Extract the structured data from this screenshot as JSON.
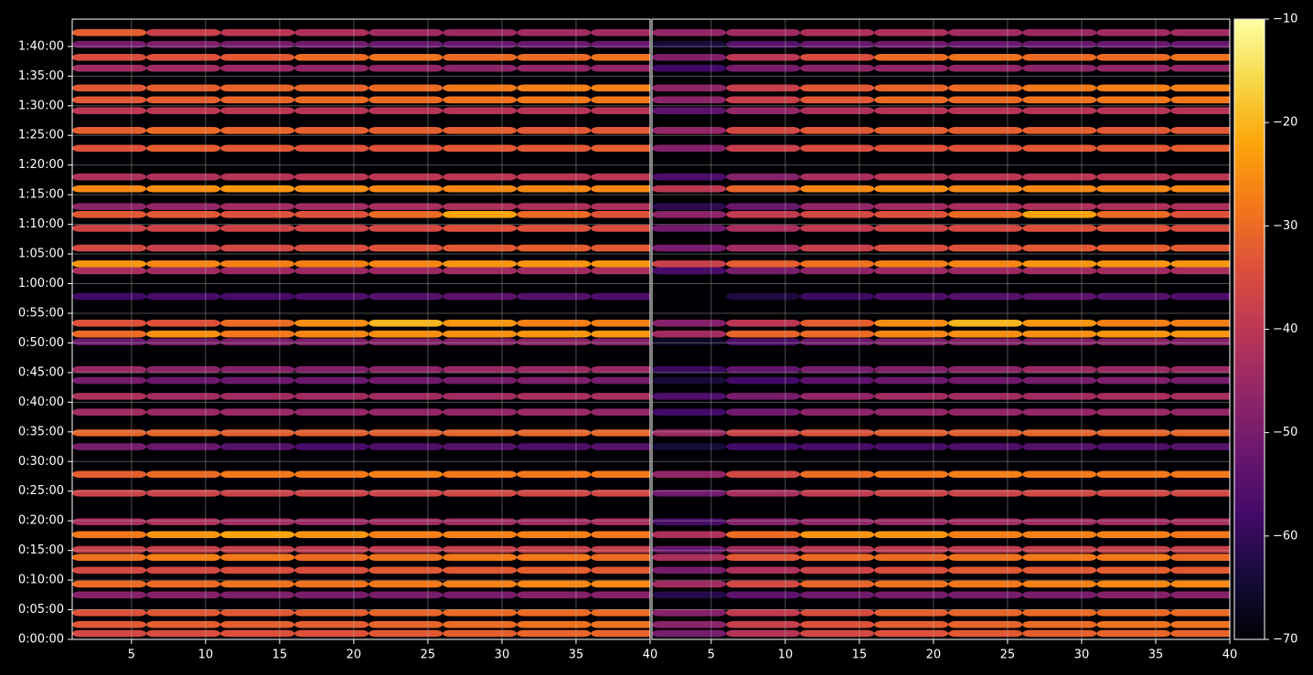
{
  "chart_data": [
    {
      "type": "heatmap",
      "colormap": "inferno",
      "zlim": [
        -70,
        -10
      ],
      "grid": true,
      "xlim": [
        1,
        40
      ],
      "xticks": [
        5,
        10,
        15,
        20,
        25,
        30,
        35,
        40
      ],
      "ylim": [
        0,
        6276
      ],
      "yticks": [
        {
          "value": 0,
          "label": "0:00:00"
        },
        {
          "value": 300,
          "label": "0:05:00"
        },
        {
          "value": 600,
          "label": "0:10:00"
        },
        {
          "value": 900,
          "label": "0:15:00"
        },
        {
          "value": 1200,
          "label": "0:20:00"
        },
        {
          "value": 1500,
          "label": "0:25:00"
        },
        {
          "value": 1800,
          "label": "0:30:00"
        },
        {
          "value": 2100,
          "label": "0:35:00"
        },
        {
          "value": 2400,
          "label": "0:40:00"
        },
        {
          "value": 2700,
          "label": "0:45:00"
        },
        {
          "value": 3000,
          "label": "0:50:00"
        },
        {
          "value": 3300,
          "label": "0:55:00"
        },
        {
          "value": 3600,
          "label": "1:00:00"
        },
        {
          "value": 3900,
          "label": "1:05:00"
        },
        {
          "value": 4200,
          "label": "1:10:00"
        },
        {
          "value": 4500,
          "label": "1:15:00"
        },
        {
          "value": 4800,
          "label": "1:20:00"
        },
        {
          "value": 5100,
          "label": "1:25:00"
        },
        {
          "value": 5400,
          "label": "1:30:00"
        },
        {
          "value": 5700,
          "label": "1:35:00"
        },
        {
          "value": 6000,
          "label": "1:40:00"
        }
      ],
      "x": [
        3.5,
        8.5,
        13.5,
        18.5,
        23.5,
        28.5,
        33.5,
        38.5
      ],
      "y": [
        60,
        150,
        270,
        450,
        560,
        700,
        830,
        910,
        1060,
        1190,
        1480,
        1670,
        1950,
        2090,
        2300,
        2460,
        2620,
        2730,
        3010,
        3090,
        3200,
        3470,
        3730,
        3800,
        3960,
        4160,
        4300,
        4380,
        4560,
        4680,
        4970,
        5150,
        5350,
        5460,
        5580,
        5780,
        5890,
        6020,
        6140
      ],
      "z": [
        [
          -36,
          -35,
          -34,
          -34,
          -33,
          -32,
          -31,
          -31
        ],
        [
          -33,
          -32,
          -32,
          -32,
          -31,
          -30,
          -29,
          -29
        ],
        [
          -34,
          -33,
          -33,
          -32,
          -31,
          -30,
          -30,
          -30
        ],
        [
          -48,
          -48,
          -49,
          -50,
          -50,
          -50,
          -48,
          -48
        ],
        [
          -30,
          -30,
          -29,
          -29,
          -28,
          -27,
          -26,
          -26
        ],
        [
          -36,
          -36,
          -35,
          -35,
          -33,
          -33,
          -32,
          -33
        ],
        [
          -29,
          -27,
          -28,
          -30,
          -29,
          -28,
          -28,
          -30
        ],
        [
          -38,
          -38,
          -38,
          -39,
          -39,
          -38,
          -38,
          -38
        ],
        [
          -28,
          -24,
          -22,
          -24,
          -27,
          -27,
          -27,
          -28
        ],
        [
          -43,
          -42,
          -44,
          -45,
          -44,
          -44,
          -44,
          -43
        ],
        [
          -37,
          -37,
          -37,
          -37,
          -37,
          -36,
          -36,
          -36
        ],
        [
          -32,
          -30,
          -28,
          -28,
          -27,
          -28,
          -28,
          -28
        ],
        [
          -50,
          -52,
          -55,
          -57,
          -56,
          -55,
          -56,
          -55
        ],
        [
          -31,
          -31,
          -32,
          -32,
          -32,
          -31,
          -31,
          -31
        ],
        [
          -44,
          -45,
          -45,
          -46,
          -46,
          -46,
          -45,
          -46
        ],
        [
          -42,
          -44,
          -44,
          -44,
          -44,
          -44,
          -43,
          -43
        ],
        [
          -50,
          -52,
          -52,
          -52,
          -51,
          -50,
          -49,
          -50
        ],
        [
          -45,
          -47,
          -48,
          -49,
          -47,
          -45,
          -45,
          -45
        ],
        [
          -52,
          -50,
          -49,
          -49,
          -48,
          -48,
          -47,
          -48
        ],
        [
          -30,
          -25,
          -28,
          -26,
          -25,
          -25,
          -24,
          -24
        ],
        [
          -34,
          -34,
          -30,
          -25,
          -20,
          -24,
          -27,
          -27
        ],
        [
          -58,
          -57,
          -57,
          -56,
          -55,
          -54,
          -55,
          -56
        ],
        [
          -43,
          -44,
          -45,
          -45,
          -45,
          -44,
          -44,
          -43
        ],
        [
          -24,
          -26,
          -27,
          -27,
          -26,
          -24,
          -24,
          -24
        ],
        [
          -36,
          -38,
          -36,
          -35,
          -34,
          -33,
          -32,
          -33
        ],
        [
          -37,
          -37,
          -37,
          -37,
          -36,
          -34,
          -34,
          -35
        ],
        [
          -33,
          -33,
          -34,
          -34,
          -30,
          -22,
          -30,
          -34
        ],
        [
          -47,
          -46,
          -44,
          -44,
          -43,
          -42,
          -42,
          -42
        ],
        [
          -26,
          -25,
          -24,
          -25,
          -26,
          -26,
          -26,
          -26
        ],
        [
          -42,
          -42,
          -41,
          -40,
          -40,
          -40,
          -40,
          -40
        ],
        [
          -34,
          -32,
          -33,
          -34,
          -34,
          -33,
          -33,
          -32
        ],
        [
          -32,
          -30,
          -31,
          -32,
          -32,
          -32,
          -33,
          -33
        ],
        [
          -40,
          -40,
          -40,
          -41,
          -41,
          -41,
          -41,
          -41
        ],
        [
          -33,
          -32,
          -31,
          -30,
          -30,
          -29,
          -28,
          -28
        ],
        [
          -33,
          -32,
          -31,
          -31,
          -30,
          -28,
          -27,
          -27
        ],
        [
          -44,
          -44,
          -45,
          -46,
          -46,
          -47,
          -46,
          -46
        ],
        [
          -35,
          -34,
          -33,
          -30,
          -29,
          -30,
          -30,
          -29
        ],
        [
          -50,
          -49,
          -50,
          -51,
          -52,
          -52,
          -52,
          -52
        ],
        [
          -32,
          -38,
          -40,
          -42,
          -44,
          -45,
          -44,
          -44
        ]
      ]
    },
    {
      "type": "heatmap",
      "colormap": "inferno",
      "zlim": [
        -70,
        -10
      ],
      "grid": true,
      "xlim": [
        1,
        40
      ],
      "xticks": [
        5,
        10,
        15,
        20,
        25,
        30,
        35,
        40
      ],
      "ylim": [
        0,
        6276
      ],
      "yticks": [
        0,
        300,
        600,
        900,
        1200,
        1500,
        1800,
        2100,
        2400,
        2700,
        3000,
        3300,
        3600,
        3900,
        4200,
        4500,
        4800,
        5100,
        5400,
        5700,
        6000
      ],
      "x": [
        3.5,
        8.5,
        13.5,
        18.5,
        23.5,
        28.5,
        33.5,
        38.5
      ],
      "y": [
        60,
        150,
        270,
        450,
        560,
        700,
        830,
        910,
        1060,
        1190,
        1480,
        1670,
        1950,
        2090,
        2300,
        2460,
        2620,
        2730,
        3010,
        3090,
        3200,
        3470,
        3730,
        3800,
        3960,
        4160,
        4300,
        4380,
        4560,
        4680,
        4970,
        5150,
        5350,
        5460,
        5580,
        5780,
        5890,
        6020,
        6140
      ],
      "z": [
        [
          -50,
          -41,
          -36,
          -34,
          -33,
          -32,
          -31,
          -31
        ],
        [
          -47,
          -38,
          -34,
          -32,
          -31,
          -30,
          -29,
          -29
        ],
        [
          -48,
          -39,
          -35,
          -32,
          -31,
          -30,
          -30,
          -30
        ],
        [
          -62,
          -54,
          -51,
          -50,
          -50,
          -50,
          -48,
          -48
        ],
        [
          -44,
          -36,
          -31,
          -29,
          -28,
          -27,
          -26,
          -26
        ],
        [
          -50,
          -42,
          -37,
          -35,
          -33,
          -33,
          -32,
          -33
        ],
        [
          -43,
          -33,
          -30,
          -30,
          -29,
          -28,
          -28,
          -30
        ],
        [
          -52,
          -44,
          -40,
          -39,
          -39,
          -38,
          -38,
          -38
        ],
        [
          -42,
          -30,
          -24,
          -24,
          -27,
          -27,
          -27,
          -28
        ],
        [
          -57,
          -48,
          -46,
          -45,
          -44,
          -44,
          -44,
          -43
        ],
        [
          -51,
          -43,
          -39,
          -37,
          -37,
          -36,
          -36,
          -36
        ],
        [
          -46,
          -36,
          -30,
          -28,
          -27,
          -28,
          -28,
          -28
        ],
        [
          -64,
          -58,
          -57,
          -57,
          -56,
          -55,
          -56,
          -55
        ],
        [
          -45,
          -37,
          -34,
          -32,
          -32,
          -31,
          -31,
          -31
        ],
        [
          -58,
          -51,
          -47,
          -46,
          -46,
          -46,
          -45,
          -46
        ],
        [
          -56,
          -50,
          -46,
          -44,
          -44,
          -44,
          -43,
          -43
        ],
        [
          -64,
          -58,
          -54,
          -52,
          -51,
          -50,
          -49,
          -50
        ],
        [
          -59,
          -53,
          -50,
          -49,
          -47,
          -45,
          -45,
          -45
        ],
        [
          -66,
          -56,
          -51,
          -49,
          -48,
          -48,
          -47,
          -48
        ],
        [
          -44,
          -31,
          -30,
          -26,
          -25,
          -25,
          -24,
          -24
        ],
        [
          -48,
          -40,
          -32,
          -25,
          -20,
          -24,
          -27,
          -27
        ],
        [
          -70,
          -63,
          -59,
          -56,
          -55,
          -54,
          -55,
          -56
        ],
        [
          -57,
          -50,
          -47,
          -45,
          -45,
          -44,
          -44,
          -43
        ],
        [
          -38,
          -32,
          -29,
          -27,
          -26,
          -24,
          -24,
          -24
        ],
        [
          -50,
          -44,
          -38,
          -35,
          -34,
          -33,
          -32,
          -33
        ],
        [
          -51,
          -43,
          -39,
          -37,
          -36,
          -34,
          -34,
          -35
        ],
        [
          -47,
          -39,
          -36,
          -34,
          -30,
          -22,
          -30,
          -34
        ],
        [
          -61,
          -52,
          -46,
          -44,
          -43,
          -42,
          -42,
          -42
        ],
        [
          -40,
          -31,
          -26,
          -25,
          -26,
          -26,
          -26,
          -26
        ],
        [
          -56,
          -48,
          -43,
          -40,
          -40,
          -40,
          -40,
          -40
        ],
        [
          -48,
          -38,
          -35,
          -34,
          -34,
          -33,
          -33,
          -32
        ],
        [
          -46,
          -36,
          -33,
          -32,
          -32,
          -32,
          -33,
          -33
        ],
        [
          -54,
          -46,
          -42,
          -41,
          -41,
          -41,
          -41,
          -41
        ],
        [
          -47,
          -38,
          -33,
          -30,
          -30,
          -29,
          -28,
          -28
        ],
        [
          -47,
          -38,
          -33,
          -31,
          -30,
          -28,
          -27,
          -27
        ],
        [
          -58,
          -50,
          -47,
          -46,
          -46,
          -47,
          -46,
          -46
        ],
        [
          -49,
          -40,
          -35,
          -30,
          -29,
          -30,
          -30,
          -29
        ],
        [
          -64,
          -55,
          -52,
          -51,
          -52,
          -52,
          -52,
          -52
        ],
        [
          -46,
          -44,
          -42,
          -42,
          -44,
          -45,
          -44,
          -44
        ]
      ],
      "colorbar": {
        "ticks": [
          {
            "value": -70,
            "label": "−70"
          },
          {
            "value": -60,
            "label": "−60"
          },
          {
            "value": -50,
            "label": "−50"
          },
          {
            "value": -40,
            "label": "−40"
          },
          {
            "value": -30,
            "label": "−30"
          },
          {
            "value": -20,
            "label": "−20"
          },
          {
            "value": -10,
            "label": "−10"
          }
        ]
      }
    }
  ]
}
